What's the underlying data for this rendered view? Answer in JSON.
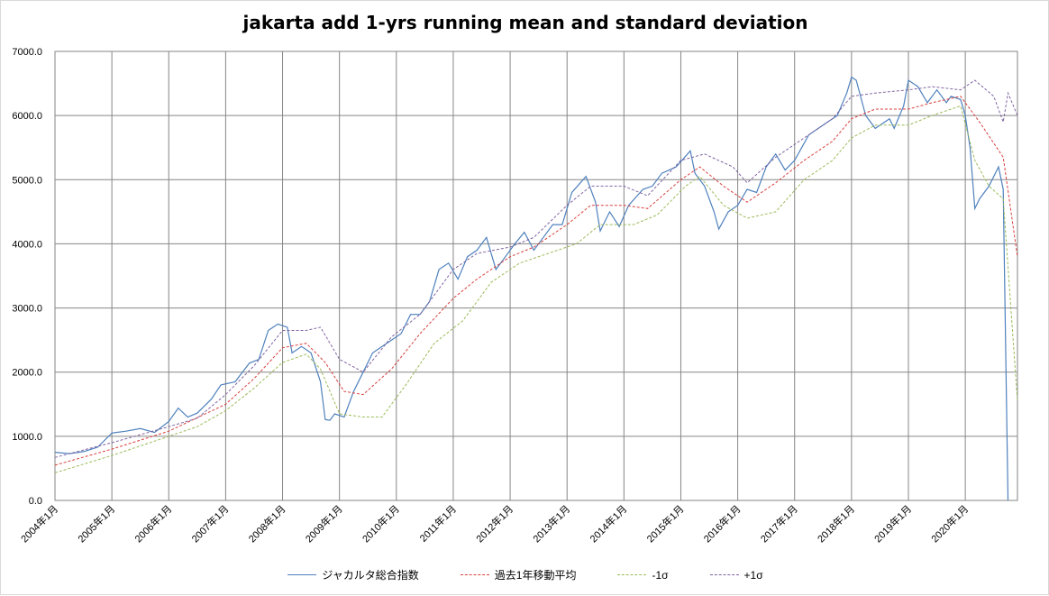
{
  "chart_data": {
    "type": "line",
    "title": "jakarta add 1-yrs running mean and standard deviation",
    "xlabel": "",
    "ylabel": "",
    "ylim": [
      0,
      7000
    ],
    "yticks": [
      0,
      1000,
      2000,
      3000,
      4000,
      5000,
      6000,
      7000
    ],
    "ytick_labels": [
      "0.0",
      "1000.0",
      "2000.0",
      "3000.0",
      "4000.0",
      "5000.0",
      "6000.0",
      "7000.0"
    ],
    "x_start": "2004-01",
    "x_end": "2020-12",
    "xtick_labels": [
      "2004年1月",
      "2005年1月",
      "2006年1月",
      "2007年1月",
      "2008年1月",
      "2009年1月",
      "2010年1月",
      "2011年1月",
      "2012年1月",
      "2013年1月",
      "2014年1月",
      "2015年1月",
      "2016年1月",
      "2017年1月",
      "2018年1月",
      "2019年1月",
      "2020年1月"
    ],
    "grid": true,
    "legend_position": "bottom",
    "series": [
      {
        "name": "ジャカルタ総合指数",
        "color": "#4f81bd",
        "style": "solid",
        "points": [
          [
            "2004-01",
            750
          ],
          [
            "2004-04",
            730
          ],
          [
            "2004-07",
            760
          ],
          [
            "2004-10",
            830
          ],
          [
            "2005-01",
            1050
          ],
          [
            "2005-04",
            1080
          ],
          [
            "2005-07",
            1120
          ],
          [
            "2005-10",
            1060
          ],
          [
            "2006-01",
            1230
          ],
          [
            "2006-03",
            1440
          ],
          [
            "2006-05",
            1300
          ],
          [
            "2006-07",
            1360
          ],
          [
            "2006-10",
            1580
          ],
          [
            "2006-12",
            1800
          ],
          [
            "2007-03",
            1850
          ],
          [
            "2007-06",
            2140
          ],
          [
            "2007-08",
            2200
          ],
          [
            "2007-10",
            2650
          ],
          [
            "2007-12",
            2750
          ],
          [
            "2008-02",
            2700
          ],
          [
            "2008-03",
            2300
          ],
          [
            "2008-05",
            2400
          ],
          [
            "2008-07",
            2300
          ],
          [
            "2008-09",
            1850
          ],
          [
            "2008-10",
            1260
          ],
          [
            "2008-11",
            1250
          ],
          [
            "2008-12",
            1350
          ],
          [
            "2009-02",
            1300
          ],
          [
            "2009-04",
            1700
          ],
          [
            "2009-06",
            2000
          ],
          [
            "2009-08",
            2300
          ],
          [
            "2009-10",
            2400
          ],
          [
            "2009-12",
            2500
          ],
          [
            "2010-02",
            2600
          ],
          [
            "2010-04",
            2900
          ],
          [
            "2010-06",
            2900
          ],
          [
            "2010-08",
            3100
          ],
          [
            "2010-10",
            3600
          ],
          [
            "2010-12",
            3700
          ],
          [
            "2011-02",
            3450
          ],
          [
            "2011-04",
            3800
          ],
          [
            "2011-06",
            3900
          ],
          [
            "2011-08",
            4100
          ],
          [
            "2011-10",
            3600
          ],
          [
            "2011-12",
            3800
          ],
          [
            "2012-02",
            4000
          ],
          [
            "2012-04",
            4180
          ],
          [
            "2012-06",
            3900
          ],
          [
            "2012-08",
            4100
          ],
          [
            "2012-10",
            4300
          ],
          [
            "2012-12",
            4300
          ],
          [
            "2013-02",
            4800
          ],
          [
            "2013-05",
            5050
          ],
          [
            "2013-07",
            4650
          ],
          [
            "2013-08",
            4200
          ],
          [
            "2013-10",
            4500
          ],
          [
            "2013-12",
            4270
          ],
          [
            "2014-02",
            4600
          ],
          [
            "2014-05",
            4850
          ],
          [
            "2014-07",
            4900
          ],
          [
            "2014-09",
            5100
          ],
          [
            "2014-12",
            5200
          ],
          [
            "2015-03",
            5450
          ],
          [
            "2015-04",
            5100
          ],
          [
            "2015-06",
            4900
          ],
          [
            "2015-08",
            4500
          ],
          [
            "2015-09",
            4230
          ],
          [
            "2015-11",
            4500
          ],
          [
            "2016-01",
            4600
          ],
          [
            "2016-03",
            4850
          ],
          [
            "2016-05",
            4800
          ],
          [
            "2016-07",
            5200
          ],
          [
            "2016-09",
            5400
          ],
          [
            "2016-11",
            5150
          ],
          [
            "2017-01",
            5300
          ],
          [
            "2017-04",
            5700
          ],
          [
            "2017-07",
            5850
          ],
          [
            "2017-10",
            6000
          ],
          [
            "2017-12",
            6350
          ],
          [
            "2018-01",
            6600
          ],
          [
            "2018-02",
            6550
          ],
          [
            "2018-04",
            6000
          ],
          [
            "2018-06",
            5800
          ],
          [
            "2018-09",
            5950
          ],
          [
            "2018-10",
            5800
          ],
          [
            "2018-12",
            6150
          ],
          [
            "2019-01",
            6550
          ],
          [
            "2019-03",
            6450
          ],
          [
            "2019-05",
            6200
          ],
          [
            "2019-07",
            6400
          ],
          [
            "2019-09",
            6200
          ],
          [
            "2019-10",
            6300
          ],
          [
            "2019-12",
            6250
          ],
          [
            "2020-01",
            6000
          ],
          [
            "2020-02",
            5500
          ],
          [
            "2020-03",
            4550
          ],
          [
            "2020-04",
            4700
          ],
          [
            "2020-06",
            4900
          ],
          [
            "2020-08",
            5200
          ],
          [
            "2020-09",
            4850
          ],
          [
            "2020-10",
            0
          ]
        ]
      },
      {
        "name": "過去1年移動平均",
        "color": "#d9413e",
        "style": "dashed",
        "points": [
          [
            "2004-01",
            550
          ],
          [
            "2005-01",
            800
          ],
          [
            "2006-01",
            1080
          ],
          [
            "2007-01",
            1500
          ],
          [
            "2007-07",
            1900
          ],
          [
            "2008-01",
            2380
          ],
          [
            "2008-06",
            2450
          ],
          [
            "2008-10",
            2150
          ],
          [
            "2009-02",
            1700
          ],
          [
            "2009-06",
            1650
          ],
          [
            "2009-12",
            2050
          ],
          [
            "2010-06",
            2600
          ],
          [
            "2011-01",
            3150
          ],
          [
            "2011-06",
            3450
          ],
          [
            "2012-01",
            3800
          ],
          [
            "2012-06",
            3950
          ],
          [
            "2013-01",
            4300
          ],
          [
            "2013-06",
            4600
          ],
          [
            "2014-01",
            4600
          ],
          [
            "2014-06",
            4550
          ],
          [
            "2015-01",
            5000
          ],
          [
            "2015-05",
            5200
          ],
          [
            "2015-10",
            4900
          ],
          [
            "2016-03",
            4650
          ],
          [
            "2016-09",
            4950
          ],
          [
            "2017-03",
            5300
          ],
          [
            "2017-09",
            5600
          ],
          [
            "2018-01",
            5950
          ],
          [
            "2018-06",
            6100
          ],
          [
            "2019-01",
            6100
          ],
          [
            "2019-06",
            6200
          ],
          [
            "2019-12",
            6300
          ],
          [
            "2020-04",
            5900
          ],
          [
            "2020-09",
            5350
          ],
          [
            "2020-12",
            3800
          ]
        ]
      },
      {
        "name": "-1σ",
        "color": "#9bbb59",
        "style": "dashed",
        "points": [
          [
            "2004-01",
            430
          ],
          [
            "2005-01",
            700
          ],
          [
            "2006-01",
            1000
          ],
          [
            "2006-07",
            1150
          ],
          [
            "2007-01",
            1400
          ],
          [
            "2007-07",
            1750
          ],
          [
            "2008-01",
            2150
          ],
          [
            "2008-06",
            2280
          ],
          [
            "2008-09",
            2050
          ],
          [
            "2009-01",
            1350
          ],
          [
            "2009-06",
            1300
          ],
          [
            "2009-10",
            1300
          ],
          [
            "2010-03",
            1800
          ],
          [
            "2010-09",
            2450
          ],
          [
            "2011-03",
            2800
          ],
          [
            "2011-09",
            3400
          ],
          [
            "2012-03",
            3700
          ],
          [
            "2012-09",
            3850
          ],
          [
            "2013-03",
            4000
          ],
          [
            "2013-08",
            4300
          ],
          [
            "2014-03",
            4300
          ],
          [
            "2014-08",
            4450
          ],
          [
            "2015-02",
            4900
          ],
          [
            "2015-05",
            5050
          ],
          [
            "2015-10",
            4600
          ],
          [
            "2016-03",
            4400
          ],
          [
            "2016-09",
            4500
          ],
          [
            "2017-03",
            5000
          ],
          [
            "2017-09",
            5300
          ],
          [
            "2018-01",
            5650
          ],
          [
            "2018-06",
            5850
          ],
          [
            "2019-01",
            5850
          ],
          [
            "2019-06",
            6000
          ],
          [
            "2019-12",
            6150
          ],
          [
            "2020-03",
            5300
          ],
          [
            "2020-06",
            4900
          ],
          [
            "2020-09",
            4700
          ],
          [
            "2020-11",
            2600
          ],
          [
            "2020-12",
            1550
          ]
        ]
      },
      {
        "name": "+1σ",
        "color": "#8064a2",
        "style": "dashed",
        "points": [
          [
            "2004-01",
            670
          ],
          [
            "2005-01",
            900
          ],
          [
            "2006-01",
            1150
          ],
          [
            "2006-07",
            1280
          ],
          [
            "2007-01",
            1650
          ],
          [
            "2007-07",
            2100
          ],
          [
            "2008-01",
            2650
          ],
          [
            "2008-06",
            2650
          ],
          [
            "2008-09",
            2700
          ],
          [
            "2009-01",
            2200
          ],
          [
            "2009-06",
            2000
          ],
          [
            "2009-12",
            2550
          ],
          [
            "2010-06",
            2900
          ],
          [
            "2011-01",
            3600
          ],
          [
            "2011-06",
            3850
          ],
          [
            "2012-01",
            3950
          ],
          [
            "2012-06",
            4100
          ],
          [
            "2013-01",
            4600
          ],
          [
            "2013-06",
            4900
          ],
          [
            "2014-01",
            4900
          ],
          [
            "2014-06",
            4750
          ],
          [
            "2015-01",
            5300
          ],
          [
            "2015-06",
            5400
          ],
          [
            "2015-12",
            5200
          ],
          [
            "2016-03",
            4950
          ],
          [
            "2016-09",
            5350
          ],
          [
            "2017-03",
            5650
          ],
          [
            "2017-09",
            5950
          ],
          [
            "2018-01",
            6300
          ],
          [
            "2018-06",
            6350
          ],
          [
            "2019-01",
            6400
          ],
          [
            "2019-06",
            6450
          ],
          [
            "2019-12",
            6400
          ],
          [
            "2020-03",
            6550
          ],
          [
            "2020-07",
            6300
          ],
          [
            "2020-09",
            5900
          ],
          [
            "2020-10",
            6350
          ],
          [
            "2020-12",
            6000
          ]
        ]
      }
    ]
  }
}
